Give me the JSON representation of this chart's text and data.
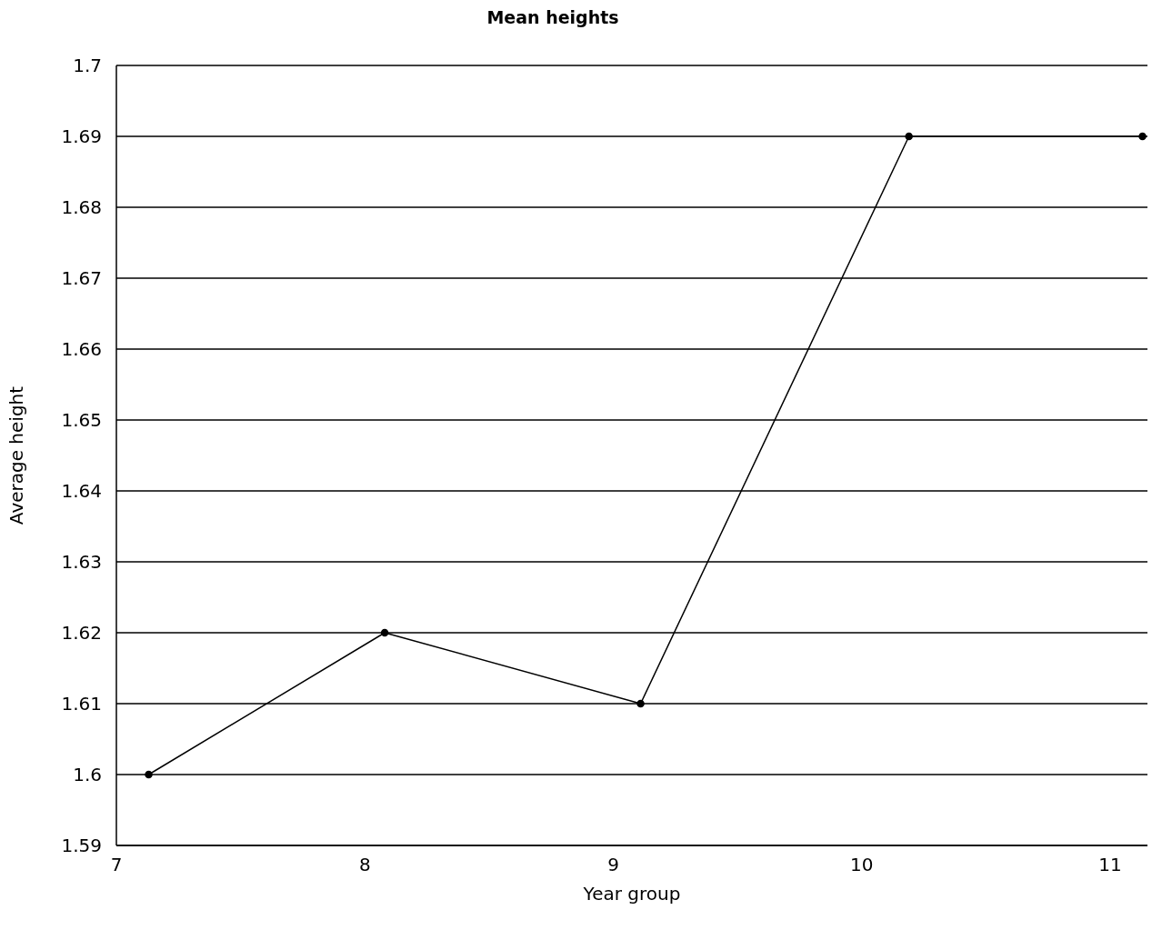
{
  "chart_data": {
    "type": "line",
    "title": "Mean heights",
    "xlabel": "Year group",
    "ylabel": "Average height",
    "x": [
      7.13,
      8.08,
      9.11,
      10.19,
      11.13
    ],
    "series": [
      {
        "color": "#000000",
        "values": [
          1.6,
          1.62,
          1.61,
          1.69,
          1.69
        ]
      }
    ],
    "xlim": [
      7,
      11.15
    ],
    "xticks": [
      7,
      8,
      9,
      10,
      11
    ],
    "ylim": [
      1.59,
      1.7
    ],
    "yticks": [
      1.59,
      1.6,
      1.61,
      1.62,
      1.63,
      1.64,
      1.65,
      1.66,
      1.67,
      1.68,
      1.69,
      1.7
    ],
    "grid": "y",
    "legend": false,
    "marker": "circle",
    "line_style": "solid"
  }
}
